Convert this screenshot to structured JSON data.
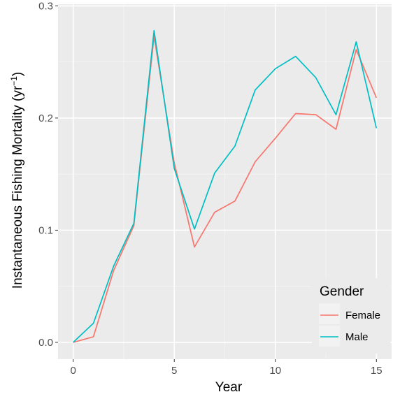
{
  "chart_data": {
    "type": "line",
    "xlabel": "Year",
    "ylabel": "Instantaneous Fishing Mortality (yr",
    "ylabel_sup": "−1",
    "ylabel_close": ")",
    "xlim": [
      -0.75,
      15.75
    ],
    "ylim": [
      -0.015,
      0.3015
    ],
    "x_ticks": [
      0,
      5,
      10,
      15
    ],
    "x_tick_labels": [
      "0",
      "5",
      "10",
      "15"
    ],
    "y_ticks": [
      0.0,
      0.1,
      0.2,
      0.3
    ],
    "y_tick_labels": [
      "0.0",
      "0.1",
      "0.2",
      "0.3"
    ],
    "grid": true,
    "legend": {
      "title": "Gender",
      "placement": "bottom-right"
    },
    "x": [
      0,
      1,
      2,
      3,
      4,
      5,
      6,
      7,
      8,
      9,
      10,
      11,
      12,
      13,
      14,
      15
    ],
    "series": [
      {
        "name": "Female",
        "color": "#F8766D",
        "values": [
          0.0,
          0.005,
          0.064,
          0.104,
          0.273,
          0.16,
          0.085,
          0.116,
          0.126,
          0.161,
          0.182,
          0.204,
          0.203,
          0.19,
          0.261,
          0.218
        ]
      },
      {
        "name": "Male",
        "color": "#00BFC4",
        "values": [
          0.0,
          0.017,
          0.068,
          0.106,
          0.278,
          0.155,
          0.101,
          0.151,
          0.175,
          0.225,
          0.244,
          0.255,
          0.236,
          0.203,
          0.268,
          0.191
        ]
      }
    ]
  }
}
